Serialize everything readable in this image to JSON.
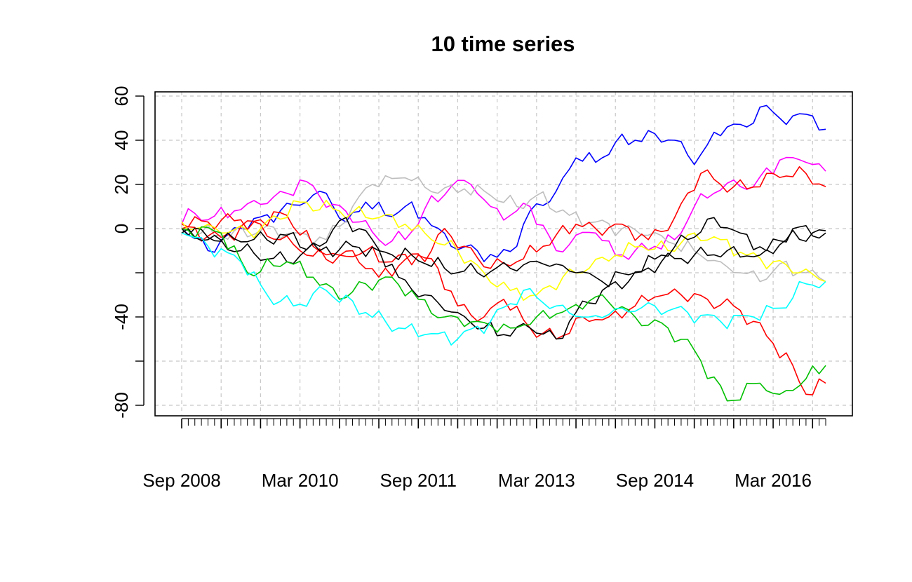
{
  "chart_data": {
    "type": "line",
    "title": "10 time series",
    "xlabel": "",
    "ylabel": "",
    "ylim": [
      -85,
      62
    ],
    "y_ticks": [
      60,
      40,
      20,
      0,
      -20,
      -40,
      -60,
      -80
    ],
    "y_tick_labels": [
      "60",
      "40",
      "20",
      "0",
      "",
      "-40",
      "",
      "-80"
    ],
    "x_start": "2008-09",
    "x_end": "2016-11",
    "x_tick_labels": [
      "Sep 2008",
      "Mar 2010",
      "Sep 2011",
      "Mar 2013",
      "Sep 2014",
      "Mar 2016"
    ],
    "x_tick_dates": [
      "2008-09",
      "2010-03",
      "2011-09",
      "2013-03",
      "2014-09",
      "2016-03"
    ],
    "x_major_dates": [
      "2008-09",
      "2009-03",
      "2009-09",
      "2010-03",
      "2010-09",
      "2011-03",
      "2011-09",
      "2012-03",
      "2012-09",
      "2013-03",
      "2013-09",
      "2014-03",
      "2014-09",
      "2015-03",
      "2015-09",
      "2016-03",
      "2016-09"
    ],
    "grid": true,
    "legend": "none",
    "series": [
      {
        "color": "#0000ff",
        "keypoints": [
          [
            "2008-09",
            0
          ],
          [
            "2009-01",
            -10
          ],
          [
            "2009-06",
            0
          ],
          [
            "2009-12",
            8
          ],
          [
            "2010-04",
            12
          ],
          [
            "2010-07",
            16
          ],
          [
            "2010-10",
            3
          ],
          [
            "2011-01",
            12
          ],
          [
            "2011-04",
            6
          ],
          [
            "2011-07",
            10
          ],
          [
            "2011-10",
            5
          ],
          [
            "2012-02",
            -8
          ],
          [
            "2012-06",
            -10
          ],
          [
            "2012-09",
            -13
          ],
          [
            "2012-12",
            -8
          ],
          [
            "2013-02",
            8
          ],
          [
            "2013-06",
            17
          ],
          [
            "2013-09",
            32
          ],
          [
            "2013-12",
            30
          ],
          [
            "2014-03",
            39
          ],
          [
            "2014-06",
            40
          ],
          [
            "2014-09",
            43
          ],
          [
            "2014-12",
            40
          ],
          [
            "2015-03",
            29
          ],
          [
            "2015-05",
            38
          ],
          [
            "2015-08",
            46
          ],
          [
            "2015-11",
            46
          ],
          [
            "2016-01",
            55
          ],
          [
            "2016-04",
            50
          ],
          [
            "2016-07",
            52
          ],
          [
            "2016-09",
            51
          ],
          [
            "2016-11",
            45
          ]
        ]
      },
      {
        "color": "#ff00ff",
        "keypoints": [
          [
            "2008-09",
            2
          ],
          [
            "2008-10",
            9
          ],
          [
            "2009-01",
            4
          ],
          [
            "2009-05",
            8
          ],
          [
            "2009-09",
            11
          ],
          [
            "2010-01",
            16
          ],
          [
            "2010-03",
            22
          ],
          [
            "2010-08",
            11
          ],
          [
            "2010-12",
            3
          ],
          [
            "2011-03",
            -5
          ],
          [
            "2011-07",
            -5
          ],
          [
            "2011-10",
            9
          ],
          [
            "2012-02",
            19
          ],
          [
            "2012-05",
            20
          ],
          [
            "2012-08",
            10
          ],
          [
            "2012-11",
            6
          ],
          [
            "2013-02",
            10
          ],
          [
            "2013-06",
            -10
          ],
          [
            "2013-09",
            -3
          ],
          [
            "2013-12",
            -2
          ],
          [
            "2014-03",
            -12
          ],
          [
            "2014-06",
            -10
          ],
          [
            "2014-09",
            -8
          ],
          [
            "2014-12",
            -5
          ],
          [
            "2015-03",
            10
          ],
          [
            "2015-06",
            16
          ],
          [
            "2015-09",
            22
          ],
          [
            "2015-12",
            19
          ],
          [
            "2016-04",
            31
          ],
          [
            "2016-08",
            30
          ],
          [
            "2016-11",
            26
          ]
        ]
      },
      {
        "color": "#bebebe",
        "keypoints": [
          [
            "2008-09",
            0
          ],
          [
            "2009-03",
            -3
          ],
          [
            "2009-09",
            -1
          ],
          [
            "2010-03",
            -2
          ],
          [
            "2010-07",
            -5
          ],
          [
            "2010-11",
            10
          ],
          [
            "2011-02",
            20
          ],
          [
            "2011-07",
            23
          ],
          [
            "2011-12",
            16
          ],
          [
            "2012-04",
            18
          ],
          [
            "2012-08",
            15
          ],
          [
            "2012-12",
            10
          ],
          [
            "2013-03",
            15
          ],
          [
            "2013-08",
            6
          ],
          [
            "2013-12",
            3
          ],
          [
            "2014-04",
            0
          ],
          [
            "2014-08",
            -3
          ],
          [
            "2014-12",
            -7
          ],
          [
            "2015-03",
            -10
          ],
          [
            "2015-07",
            -15
          ],
          [
            "2015-10",
            -20
          ],
          [
            "2016-01",
            -24
          ],
          [
            "2016-04",
            -16
          ],
          [
            "2016-08",
            -20
          ],
          [
            "2016-11",
            -24
          ]
        ]
      },
      {
        "color": "#ff0000",
        "keypoints": [
          [
            "2008-09",
            2
          ],
          [
            "2009-01",
            3
          ],
          [
            "2009-06",
            4
          ],
          [
            "2009-12",
            -5
          ],
          [
            "2010-03",
            -10
          ],
          [
            "2010-07",
            -14
          ],
          [
            "2010-11",
            -10
          ],
          [
            "2011-03",
            -22
          ],
          [
            "2011-07",
            -14
          ],
          [
            "2011-11",
            -10
          ],
          [
            "2012-01",
            0
          ],
          [
            "2012-04",
            -8
          ],
          [
            "2012-08",
            -18
          ],
          [
            "2012-12",
            -15
          ],
          [
            "2013-04",
            -8
          ],
          [
            "2013-09",
            2
          ],
          [
            "2013-12",
            0
          ],
          [
            "2014-04",
            2
          ],
          [
            "2014-08",
            -5
          ],
          [
            "2014-12",
            5
          ],
          [
            "2015-04",
            25
          ],
          [
            "2015-07",
            20
          ],
          [
            "2015-11",
            18
          ],
          [
            "2016-03",
            25
          ],
          [
            "2016-08",
            25
          ],
          [
            "2016-11",
            19
          ]
        ]
      },
      {
        "color": "#ff0000",
        "keypoints": [
          [
            "2008-09",
            0
          ],
          [
            "2009-03",
            -4
          ],
          [
            "2009-09",
            4
          ],
          [
            "2010-01",
            6
          ],
          [
            "2010-05",
            -8
          ],
          [
            "2010-09",
            -12
          ],
          [
            "2011-01",
            -10
          ],
          [
            "2011-05",
            -15
          ],
          [
            "2011-09",
            -12
          ],
          [
            "2011-12",
            -18
          ],
          [
            "2012-03",
            -35
          ],
          [
            "2012-07",
            -40
          ],
          [
            "2012-10",
            -32
          ],
          [
            "2013-02",
            -45
          ],
          [
            "2013-06",
            -50
          ],
          [
            "2013-10",
            -40
          ],
          [
            "2014-02",
            -40
          ],
          [
            "2014-06",
            -35
          ],
          [
            "2014-09",
            -31
          ],
          [
            "2015-01",
            -30
          ],
          [
            "2015-05",
            -32
          ],
          [
            "2015-09",
            -35
          ],
          [
            "2015-12",
            -42
          ],
          [
            "2016-03",
            -52
          ],
          [
            "2016-06",
            -62
          ],
          [
            "2016-08",
            -75
          ],
          [
            "2016-11",
            -70
          ]
        ]
      },
      {
        "color": "#ffff00",
        "keypoints": [
          [
            "2008-09",
            3
          ],
          [
            "2009-03",
            -2
          ],
          [
            "2009-09",
            0
          ],
          [
            "2010-03",
            12
          ],
          [
            "2010-09",
            8
          ],
          [
            "2011-03",
            5
          ],
          [
            "2011-07",
            2
          ],
          [
            "2011-11",
            -5
          ],
          [
            "2012-03",
            -10
          ],
          [
            "2012-07",
            -20
          ],
          [
            "2012-11",
            -28
          ],
          [
            "2013-03",
            -30
          ],
          [
            "2013-07",
            -22
          ],
          [
            "2013-11",
            -18
          ],
          [
            "2014-03",
            -12
          ],
          [
            "2014-07",
            -8
          ],
          [
            "2014-11",
            -10
          ],
          [
            "2015-03",
            -2
          ],
          [
            "2015-07",
            -5
          ],
          [
            "2015-11",
            -12
          ],
          [
            "2016-03",
            -15
          ],
          [
            "2016-07",
            -20
          ],
          [
            "2016-11",
            -24
          ]
        ]
      },
      {
        "color": "#000000",
        "keypoints": [
          [
            "2008-09",
            0
          ],
          [
            "2009-01",
            -4
          ],
          [
            "2009-06",
            -6
          ],
          [
            "2010-01",
            -3
          ],
          [
            "2010-06",
            -10
          ],
          [
            "2010-11",
            -8
          ],
          [
            "2011-03",
            -10
          ],
          [
            "2011-08",
            -12
          ],
          [
            "2012-01",
            -18
          ],
          [
            "2012-06",
            -20
          ],
          [
            "2012-11",
            -18
          ],
          [
            "2013-04",
            -16
          ],
          [
            "2013-09",
            -20
          ],
          [
            "2014-01",
            -24
          ],
          [
            "2014-06",
            -20
          ],
          [
            "2014-10",
            -12
          ],
          [
            "2015-02",
            -5
          ],
          [
            "2015-06",
            5
          ],
          [
            "2015-10",
            -2
          ],
          [
            "2016-02",
            -10
          ],
          [
            "2016-06",
            0
          ],
          [
            "2016-11",
            -2
          ]
        ]
      },
      {
        "color": "#000000",
        "keypoints": [
          [
            "2008-09",
            -2
          ],
          [
            "2009-01",
            -5
          ],
          [
            "2009-06",
            -10
          ],
          [
            "2010-01",
            -15
          ],
          [
            "2010-06",
            -8
          ],
          [
            "2010-10",
            5
          ],
          [
            "2011-02",
            -5
          ],
          [
            "2011-06",
            -22
          ],
          [
            "2011-10",
            -30
          ],
          [
            "2012-03",
            -38
          ],
          [
            "2012-07",
            -45
          ],
          [
            "2012-10",
            -48
          ],
          [
            "2013-02",
            -45
          ],
          [
            "2013-06",
            -50
          ],
          [
            "2013-09",
            -38
          ],
          [
            "2014-01",
            -28
          ],
          [
            "2014-05",
            -24
          ],
          [
            "2014-10",
            -15
          ],
          [
            "2015-03",
            -12
          ],
          [
            "2015-08",
            -10
          ],
          [
            "2016-01",
            -12
          ],
          [
            "2016-05",
            -5
          ],
          [
            "2016-11",
            -1
          ]
        ]
      },
      {
        "color": "#00c000",
        "keypoints": [
          [
            "2008-09",
            0
          ],
          [
            "2009-03",
            -2
          ],
          [
            "2009-07",
            -20
          ],
          [
            "2010-01",
            -15
          ],
          [
            "2010-05",
            -22
          ],
          [
            "2010-09",
            -32
          ],
          [
            "2011-01",
            -25
          ],
          [
            "2011-05",
            -22
          ],
          [
            "2011-09",
            -32
          ],
          [
            "2012-01",
            -40
          ],
          [
            "2012-06",
            -42
          ],
          [
            "2012-11",
            -45
          ],
          [
            "2013-03",
            -40
          ],
          [
            "2013-08",
            -36
          ],
          [
            "2014-01",
            -30
          ],
          [
            "2014-06",
            -40
          ],
          [
            "2014-11",
            -45
          ],
          [
            "2015-03",
            -55
          ],
          [
            "2015-08",
            -78
          ],
          [
            "2016-01",
            -70
          ],
          [
            "2016-04",
            -75
          ],
          [
            "2016-08",
            -68
          ],
          [
            "2016-11",
            -62
          ]
        ]
      },
      {
        "color": "#00ffff",
        "keypoints": [
          [
            "2008-09",
            -2
          ],
          [
            "2009-01",
            -8
          ],
          [
            "2009-06",
            -15
          ],
          [
            "2009-10",
            -30
          ],
          [
            "2010-02",
            -35
          ],
          [
            "2010-07",
            -28
          ],
          [
            "2011-01",
            -38
          ],
          [
            "2011-06",
            -45
          ],
          [
            "2011-10",
            -48
          ],
          [
            "2012-03",
            -50
          ],
          [
            "2012-08",
            -42
          ],
          [
            "2013-01",
            -28
          ],
          [
            "2013-06",
            -35
          ],
          [
            "2013-11",
            -40
          ],
          [
            "2014-04",
            -36
          ],
          [
            "2014-09",
            -35
          ],
          [
            "2015-02",
            -38
          ],
          [
            "2015-07",
            -42
          ],
          [
            "2015-12",
            -40
          ],
          [
            "2016-04",
            -36
          ],
          [
            "2016-08",
            -25
          ],
          [
            "2016-11",
            -24
          ]
        ]
      }
    ]
  }
}
